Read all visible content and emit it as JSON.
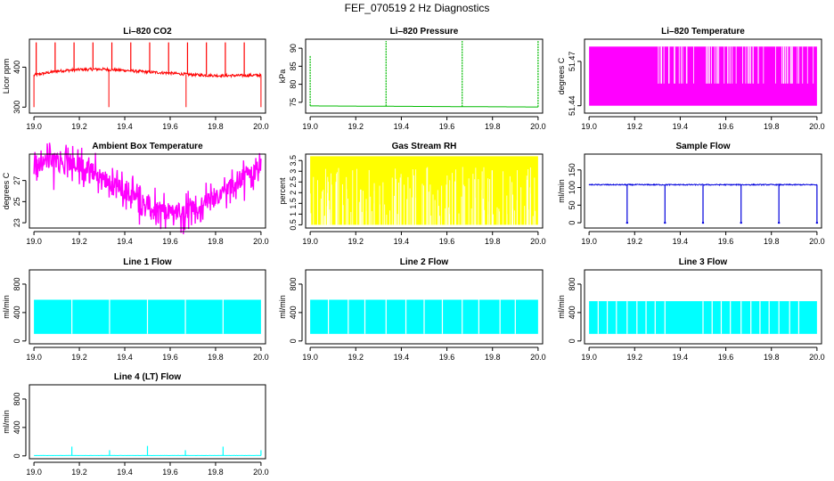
{
  "figure_title": "FEF_070519  2 Hz Diagnostics",
  "chart_data": [
    {
      "id": "co2",
      "type": "line",
      "title": "Li–820 CO2",
      "ylabel": "Licor ppm",
      "color": "#ff0000",
      "x_range": [
        19.0,
        20.0
      ],
      "xlim": [
        18.98,
        20.02
      ],
      "ylim": [
        285,
        470
      ],
      "yticks": [
        300,
        400
      ],
      "xticks": [
        19.0,
        19.2,
        19.4,
        19.6,
        19.8,
        20.0
      ],
      "x_tick_labels": [
        "19.0",
        "19.2",
        "19.4",
        "19.6",
        "19.8",
        "20.0"
      ],
      "baseline": [
        [
          19.0,
          380
        ],
        [
          19.05,
          385
        ],
        [
          19.1,
          390
        ],
        [
          19.2,
          394
        ],
        [
          19.3,
          395
        ],
        [
          19.4,
          392
        ],
        [
          19.5,
          388
        ],
        [
          19.6,
          385
        ],
        [
          19.7,
          381
        ],
        [
          19.8,
          379
        ],
        [
          19.9,
          379
        ],
        [
          20.0,
          380
        ]
      ],
      "noise": 7,
      "spike_high": 462,
      "spike_every": 0.0833,
      "dip_low": 300
    },
    {
      "id": "pressure",
      "type": "line",
      "title": "Li–820 Pressure",
      "ylabel": "kPa",
      "color": "#00bb00",
      "x_range": [
        19.0,
        20.0
      ],
      "xlim": [
        18.98,
        20.02
      ],
      "ylim": [
        72,
        92.5
      ],
      "yticks": [
        75,
        80,
        85,
        90
      ],
      "xticks": [
        19.0,
        19.2,
        19.4,
        19.6,
        19.8,
        20.0
      ],
      "x_tick_labels": [
        "19.0",
        "19.2",
        "19.4",
        "19.6",
        "19.8",
        "20.0"
      ],
      "baseline": [
        [
          19.0,
          74
        ],
        [
          20.0,
          73.7
        ]
      ],
      "spikes": [
        [
          19.0,
          88
        ],
        [
          19.333,
          92
        ],
        [
          19.667,
          92
        ],
        [
          20.0,
          92
        ]
      ]
    },
    {
      "id": "temp",
      "type": "band",
      "title": "Li–820 Temperature",
      "ylabel": "degrees C",
      "color": "#ff00ff",
      "x_range": [
        19.0,
        20.0
      ],
      "xlim": [
        18.98,
        20.02
      ],
      "ylim": [
        51.435,
        51.485
      ],
      "yticks": [
        51.44,
        51.47
      ],
      "ytick_labels": [
        "51.44",
        "51.47"
      ],
      "xticks": [
        19.0,
        19.2,
        19.4,
        19.6,
        19.8,
        20.0
      ],
      "x_tick_labels": [
        "19.0",
        "19.2",
        "19.4",
        "19.6",
        "19.8",
        "20.0"
      ],
      "levels": [
        51.44,
        51.455,
        51.48
      ]
    },
    {
      "id": "ambient",
      "type": "line",
      "title": "Ambient Box Temperature",
      "ylabel": "degrees C",
      "color": "#ff00ff",
      "x_range": [
        19.0,
        20.0
      ],
      "xlim": [
        18.98,
        20.02
      ],
      "ylim": [
        22.5,
        29.5
      ],
      "yticks": [
        23,
        25,
        27
      ],
      "xticks": [
        19.0,
        19.2,
        19.4,
        19.6,
        19.8,
        20.0
      ],
      "x_tick_labels": [
        "19.0",
        "19.2",
        "19.4",
        "19.6",
        "19.8",
        "20.0"
      ],
      "baseline": [
        [
          19.0,
          28.2
        ],
        [
          19.05,
          28.8
        ],
        [
          19.1,
          29.0
        ],
        [
          19.2,
          28.5
        ],
        [
          19.3,
          27.4
        ],
        [
          19.4,
          26.0
        ],
        [
          19.5,
          24.8
        ],
        [
          19.6,
          24.0
        ],
        [
          19.7,
          24.3
        ],
        [
          19.8,
          25.4
        ],
        [
          19.9,
          27.0
        ],
        [
          20.0,
          28.5
        ]
      ],
      "noise": 1.6
    },
    {
      "id": "rh",
      "type": "band",
      "title": "Gas Stream RH",
      "ylabel": "percent",
      "color": "#ffff00",
      "x_range": [
        19.0,
        20.0
      ],
      "xlim": [
        18.98,
        20.02
      ],
      "ylim": [
        0.35,
        3.8
      ],
      "yticks": [
        0.5,
        1.0,
        1.5,
        2.0,
        2.5,
        3.0,
        3.5
      ],
      "ytick_labels": [
        "0.5",
        "1",
        "1.5",
        "2",
        "2.5",
        "3",
        "3.5"
      ],
      "xticks": [
        19.0,
        19.2,
        19.4,
        19.6,
        19.8,
        20.0
      ],
      "x_tick_labels": [
        "19.0",
        "19.2",
        "19.4",
        "19.6",
        "19.8",
        "20.0"
      ],
      "levels": [
        0.5,
        3.7
      ]
    },
    {
      "id": "sample",
      "type": "line",
      "title": "Sample Flow",
      "ylabel": "ml/min",
      "color": "#0000dd",
      "x_range": [
        19.0,
        20.0
      ],
      "xlim": [
        18.98,
        20.02
      ],
      "ylim": [
        -15,
        195
      ],
      "yticks": [
        0,
        50,
        100,
        150
      ],
      "xticks": [
        19.0,
        19.2,
        19.4,
        19.6,
        19.8,
        20.0
      ],
      "x_tick_labels": [
        "19.0",
        "19.2",
        "19.4",
        "19.6",
        "19.8",
        "20.0"
      ],
      "baseline": [
        [
          19.0,
          108
        ],
        [
          20.0,
          108
        ]
      ],
      "noise": 3,
      "drops": [
        19.167,
        19.333,
        19.5,
        19.667,
        19.833,
        20.0
      ],
      "drop_low": 0
    },
    {
      "id": "line1",
      "type": "band",
      "title": "Line 1 Flow",
      "ylabel": "ml/min",
      "color": "#00ffff",
      "x_range": [
        19.0,
        20.0
      ],
      "xlim": [
        18.98,
        20.02
      ],
      "ylim": [
        -40,
        1000
      ],
      "yticks": [
        0,
        400,
        800
      ],
      "xticks": [
        19.0,
        19.2,
        19.4,
        19.6,
        19.8,
        20.0
      ],
      "x_tick_labels": [
        "19.0",
        "19.2",
        "19.4",
        "19.6",
        "19.8",
        "20.0"
      ],
      "levels": [
        100,
        580
      ],
      "gaps": [
        19.167,
        19.333,
        19.5,
        19.667,
        19.833
      ]
    },
    {
      "id": "line2",
      "type": "band",
      "title": "Line 2 Flow",
      "ylabel": "ml/min",
      "color": "#00ffff",
      "x_range": [
        19.0,
        20.0
      ],
      "xlim": [
        18.98,
        20.02
      ],
      "ylim": [
        -40,
        1000
      ],
      "yticks": [
        0,
        400,
        800
      ],
      "xticks": [
        19.0,
        19.2,
        19.4,
        19.6,
        19.8,
        20.0
      ],
      "x_tick_labels": [
        "19.0",
        "19.2",
        "19.4",
        "19.6",
        "19.8",
        "20.0"
      ],
      "levels": [
        100,
        580
      ],
      "gaps": [
        19.167,
        19.333,
        19.5,
        19.667,
        19.833,
        19.08,
        19.24,
        19.42,
        19.58,
        19.74,
        19.9
      ]
    },
    {
      "id": "line3",
      "type": "band",
      "title": "Line 3 Flow",
      "ylabel": "ml/min",
      "color": "#00ffff",
      "x_range": [
        19.0,
        20.0
      ],
      "xlim": [
        18.98,
        20.02
      ],
      "ylim": [
        -40,
        1000
      ],
      "yticks": [
        0,
        400,
        800
      ],
      "xticks": [
        19.0,
        19.2,
        19.4,
        19.6,
        19.8,
        20.0
      ],
      "x_tick_labels": [
        "19.0",
        "19.2",
        "19.4",
        "19.6",
        "19.8",
        "20.0"
      ],
      "levels": [
        100,
        560
      ],
      "gaps": [
        19.167,
        19.333,
        19.5,
        19.667,
        19.833,
        19.04,
        19.08,
        19.12,
        19.21,
        19.25,
        19.29,
        19.54,
        19.58,
        19.62,
        19.71,
        19.75,
        19.79,
        19.88,
        19.92
      ]
    },
    {
      "id": "line4",
      "type": "line",
      "title": "Line 4 (LT) Flow",
      "ylabel": "ml/min",
      "color": "#00ffff",
      "x_range": [
        19.0,
        20.0
      ],
      "xlim": [
        18.98,
        20.02
      ],
      "ylim": [
        -40,
        1000
      ],
      "yticks": [
        0,
        400,
        800
      ],
      "xticks": [
        19.0,
        19.2,
        19.4,
        19.6,
        19.8,
        20.0
      ],
      "x_tick_labels": [
        "19.0",
        "19.2",
        "19.4",
        "19.6",
        "19.8",
        "20.0"
      ],
      "baseline": [
        [
          19.0,
          5
        ],
        [
          20.0,
          5
        ]
      ],
      "noise": 2,
      "spikes": [
        [
          19.167,
          130
        ],
        [
          19.333,
          80
        ],
        [
          19.5,
          140
        ],
        [
          19.667,
          80
        ],
        [
          19.833,
          130
        ],
        [
          20.0,
          80
        ]
      ]
    }
  ]
}
